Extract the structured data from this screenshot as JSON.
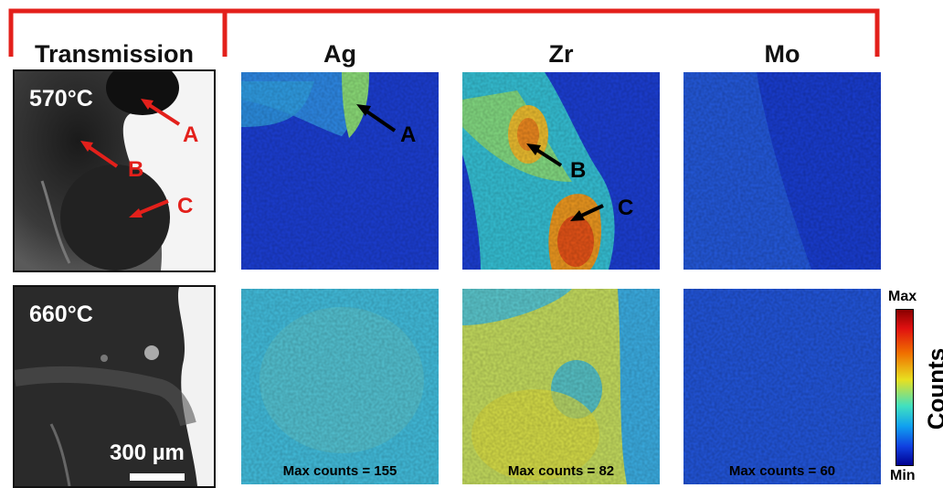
{
  "headers": {
    "transmission": "Transmission",
    "ag": "Ag",
    "zr": "Zr",
    "mo": "Mo"
  },
  "transmission": {
    "temp_top": "570°C",
    "temp_bottom": "660°C",
    "scale_bar": "300 µm",
    "markers": [
      "A",
      "B",
      "C"
    ]
  },
  "maps": {
    "markers": [
      "A",
      "B",
      "C"
    ],
    "ag_max": "Max counts = 155",
    "zr_max": "Max counts = 82",
    "mo_max": "Max counts = 60"
  },
  "colorbar": {
    "max": "Max",
    "min": "Min",
    "title": "Counts"
  },
  "colors": {
    "bracket": "#e3201b",
    "label_red": "#e3201b"
  }
}
